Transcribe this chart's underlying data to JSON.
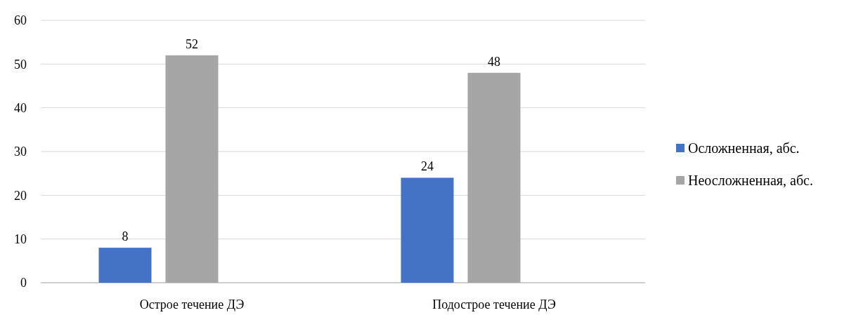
{
  "chart_data": {
    "type": "bar",
    "categories": [
      "Острое течение ДЭ",
      "Подострое течение ДЭ"
    ],
    "series": [
      {
        "name": "Осложненная, абс.",
        "color": "#4472c4",
        "values": [
          8,
          24
        ]
      },
      {
        "name": "Неосложненная, абс.",
        "color": "#a5a5a5",
        "values": [
          52,
          48
        ]
      }
    ],
    "ylim": [
      0,
      60
    ],
    "yticks": [
      0,
      10,
      20,
      30,
      40,
      50,
      60
    ],
    "grid": "y",
    "legend": "right",
    "data_labels": true
  }
}
